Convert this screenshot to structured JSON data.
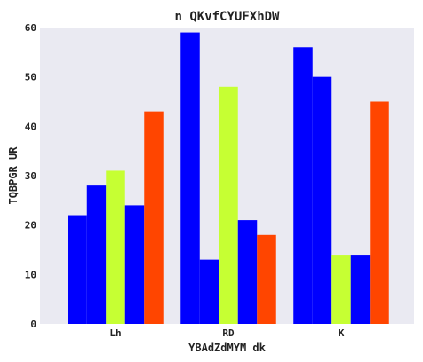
{
  "chart_data": {
    "type": "bar",
    "title": "n QKvfCYUFXhDW",
    "xlabel": "YBAdZdMYM dk",
    "ylabel": "TQBPGR UR",
    "categories": [
      "Lh",
      "RD",
      "K"
    ],
    "ylim": [
      0,
      60
    ],
    "yticks": [
      0,
      10,
      20,
      30,
      40,
      50,
      60
    ],
    "grid": false,
    "legend": "none",
    "background": "#eaeaf2",
    "series": [
      {
        "values": [
          22,
          59,
          56
        ],
        "color": "#0000ff"
      },
      {
        "values": [
          28,
          13,
          50
        ],
        "color": "#0000ff"
      },
      {
        "values": [
          31,
          48,
          14
        ],
        "color": "#c6ff33"
      },
      {
        "values": [
          24,
          21,
          14
        ],
        "color": "#0000ff"
      },
      {
        "values": [
          43,
          18,
          45
        ],
        "color": "#ff4500"
      }
    ]
  }
}
